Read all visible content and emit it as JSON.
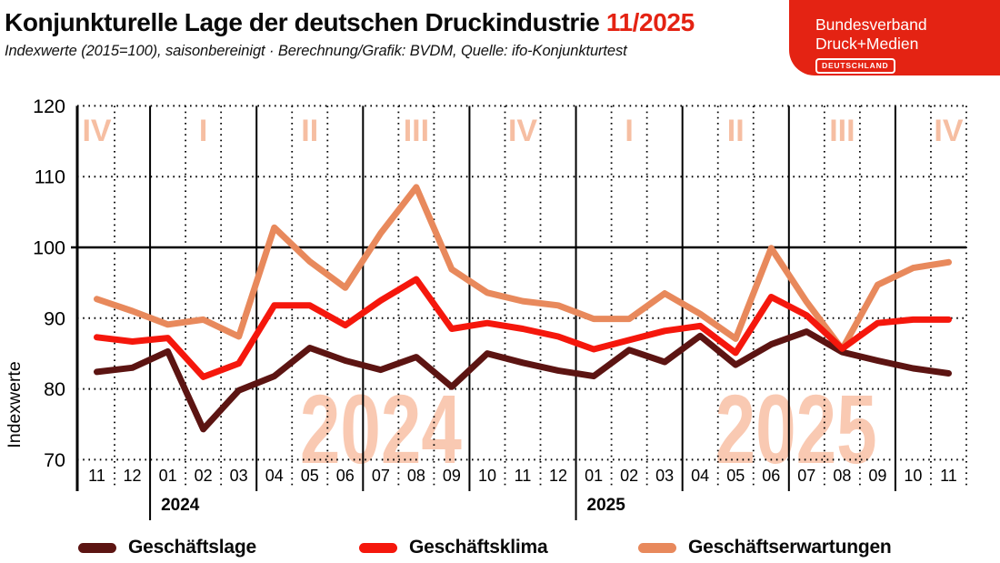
{
  "header": {
    "title": "Konjunkturelle Lage der deutschen Druckindustrie",
    "title_period": "11/2025",
    "subtitle": "Indexwerte (2015=100), saisonbereinigt · Berechnung/Grafik: BVDM, Quelle: ifo-Konjunkturtest",
    "logo": {
      "line1": "Bundesverband",
      "line2": "Druck+Medien",
      "badge": "DEUTSCHLAND"
    }
  },
  "colors": {
    "brand_red": "#E42313",
    "quarter_label": "#F6BEA2",
    "watermark": "#F9C9B2",
    "grid": "#000000"
  },
  "chart_data": {
    "type": "line",
    "ylabel": "Indexwerte",
    "ylim": [
      70,
      120
    ],
    "yticks": [
      70,
      80,
      90,
      100,
      110,
      120
    ],
    "grid": "dotted horizontal at 70/80/90/110/120, solid at 100; dotted monthly verticals, solid quarterly verticals",
    "legend_position": "bottom",
    "x_months": [
      "11",
      "12",
      "01",
      "02",
      "03",
      "04",
      "05",
      "06",
      "07",
      "08",
      "09",
      "10",
      "11",
      "12",
      "01",
      "02",
      "03",
      "04",
      "05",
      "06",
      "07",
      "08",
      "09",
      "10",
      "11"
    ],
    "year_labels": [
      {
        "text": "2024",
        "boundary": 2
      },
      {
        "text": "2025",
        "boundary": 14
      }
    ],
    "quarter_labels": [
      {
        "label": "IV",
        "month_index": 0
      },
      {
        "label": "I",
        "month_index": 3
      },
      {
        "label": "II",
        "month_index": 6
      },
      {
        "label": "III",
        "month_index": 9
      },
      {
        "label": "IV",
        "month_index": 12
      },
      {
        "label": "I",
        "month_index": 15
      },
      {
        "label": "II",
        "month_index": 18
      },
      {
        "label": "III",
        "month_index": 21
      },
      {
        "label": "IV",
        "month_index": 24
      }
    ],
    "watermarks": [
      {
        "text": "2024",
        "month_index": 8
      },
      {
        "text": "2025",
        "month_index": 19.7
      }
    ],
    "quarter_boundaries": [
      2,
      5,
      8,
      11,
      14,
      17,
      20,
      23
    ],
    "year_boundaries": [
      2,
      14
    ],
    "series": [
      {
        "name": "Geschäftslage",
        "color": "#5C1412",
        "values": [
          82.4,
          83.0,
          85.3,
          74.3,
          79.8,
          81.8,
          85.8,
          84.0,
          82.7,
          84.5,
          80.3,
          85.0,
          83.7,
          82.6,
          81.8,
          85.5,
          83.8,
          87.5,
          83.4,
          86.3,
          88.1,
          85.2,
          84.0,
          82.9,
          82.2
        ]
      },
      {
        "name": "Geschäftsklima",
        "color": "#F5170C",
        "values": [
          87.3,
          86.7,
          87.2,
          81.7,
          83.6,
          91.8,
          91.8,
          89.0,
          92.5,
          95.5,
          88.5,
          89.3,
          88.5,
          87.4,
          85.6,
          86.9,
          88.2,
          88.9,
          85.1,
          93.0,
          90.4,
          85.7,
          89.3,
          89.8,
          89.8
        ]
      },
      {
        "name": "Geschäftserwartungen",
        "color": "#E8895C",
        "values": [
          92.7,
          91.0,
          89.1,
          89.8,
          87.4,
          102.8,
          98.0,
          94.3,
          102.0,
          108.5,
          96.9,
          93.6,
          92.4,
          91.8,
          89.9,
          89.9,
          93.5,
          90.6,
          87.1,
          99.9,
          92.3,
          85.6,
          94.7,
          97.1,
          97.9
        ]
      }
    ]
  }
}
